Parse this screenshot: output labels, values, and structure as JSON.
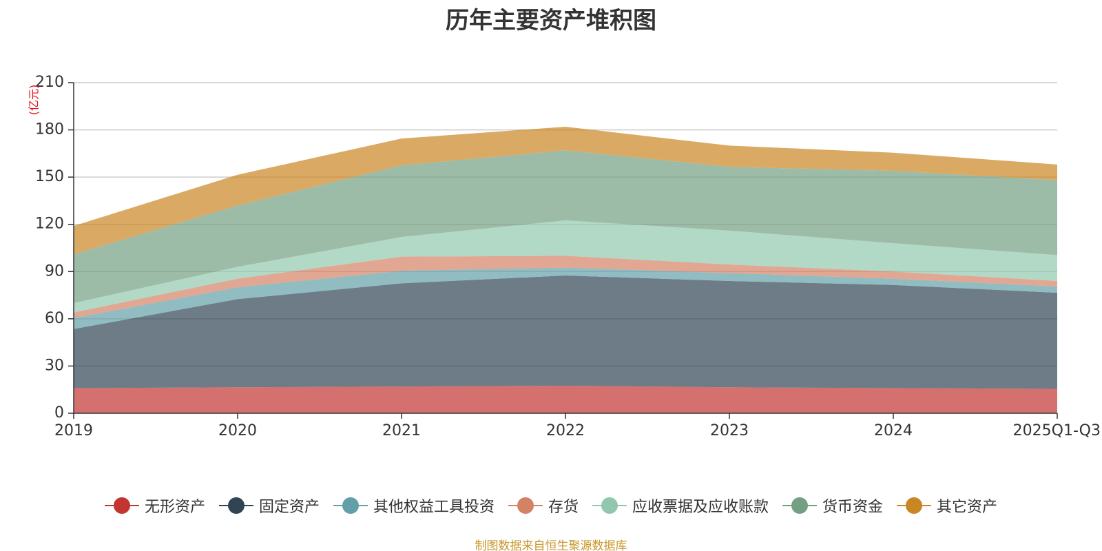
{
  "chart_data": {
    "type": "area",
    "stacked": true,
    "title": "历年主要资产堆积图",
    "unit_label": "(亿元)",
    "categories": [
      "2019",
      "2020",
      "2021",
      "2022",
      "2023",
      "2024",
      "2025Q1-Q3"
    ],
    "ylim": [
      0,
      210
    ],
    "yticks": [
      0,
      30,
      60,
      90,
      120,
      150,
      180,
      210
    ],
    "grid": true,
    "legend_position": "bottom",
    "series": [
      {
        "name": "无形资产",
        "color": "#c23531",
        "values": [
          16,
          16.5,
          17,
          17.5,
          16.5,
          16,
          15.5
        ]
      },
      {
        "name": "固定资产",
        "color": "#2f4554",
        "values": [
          37.5,
          56,
          65.5,
          70,
          67.5,
          65.5,
          61
        ]
      },
      {
        "name": "其他权益工具投资",
        "color": "#61a0a8",
        "values": [
          7,
          7.5,
          8,
          5,
          5,
          4,
          4
        ]
      },
      {
        "name": "存货",
        "color": "#d48265",
        "values": [
          3.5,
          5.5,
          9,
          7.5,
          5.5,
          4.5,
          3.5
        ]
      },
      {
        "name": "应收票据及应收账款",
        "color": "#91c7ae",
        "values": [
          6,
          7.5,
          12.5,
          22.5,
          21.5,
          18,
          16.5
        ]
      },
      {
        "name": "货币资金",
        "color": "#749f83",
        "values": [
          31,
          39,
          45.5,
          44.5,
          40.5,
          46,
          47.5
        ]
      },
      {
        "name": "其它资产",
        "color": "#ca8622",
        "values": [
          18,
          19.5,
          17,
          15,
          13.5,
          11.5,
          10
        ]
      }
    ]
  },
  "source_note": "制图数据来自恒生聚源数据库"
}
